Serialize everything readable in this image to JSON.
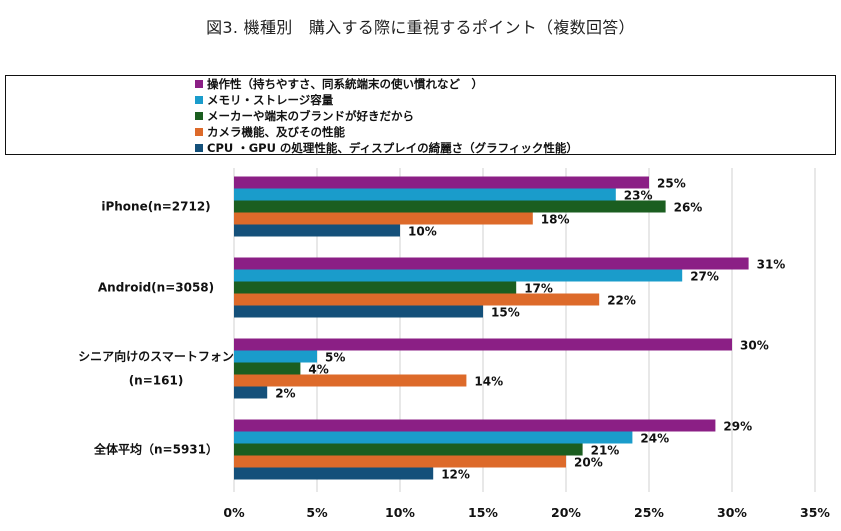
{
  "chart_data": {
    "type": "bar",
    "orientation": "horizontal",
    "title": "図3. 機種別　購入する際に重視するポイント（複数回答）",
    "xlabel": "",
    "ylabel": "",
    "xlim": [
      0,
      35
    ],
    "x_ticks": [
      0,
      5,
      10,
      15,
      20,
      25,
      30,
      35
    ],
    "x_tick_labels": [
      "0%",
      "5%",
      "10%",
      "15%",
      "20%",
      "25%",
      "30%",
      "35%"
    ],
    "grid": "vertical",
    "legend_position": "top",
    "categories": [
      {
        "label_lines": [
          "iPhone(n=2712)"
        ]
      },
      {
        "label_lines": [
          "Android(n=3058)"
        ]
      },
      {
        "label_lines": [
          "シニア向けのスマートフォン",
          "(n=161)"
        ]
      },
      {
        "label_lines": [
          "全体平均（n=5931）"
        ]
      }
    ],
    "series": [
      {
        "name": "操作性（持ちやすさ、同系統端末の使い慣れなど　）",
        "color": "#8B1F85",
        "values": [
          25,
          31,
          30,
          29
        ],
        "labels": [
          "25%",
          "31%",
          "30%",
          "29%"
        ]
      },
      {
        "name": "メモリ・ストレージ容量",
        "color": "#1A9CCB",
        "values": [
          23,
          27,
          5,
          24
        ],
        "labels": [
          "23%",
          "27%",
          "5%",
          "24%"
        ]
      },
      {
        "name": "メーカーや端末のブランドが好きだから",
        "color": "#1B5E20",
        "values": [
          26,
          17,
          4,
          21
        ],
        "labels": [
          "26%",
          "17%",
          "4%",
          "21%"
        ]
      },
      {
        "name": "カメラ機能、及びその性能",
        "color": "#DD6A2A",
        "values": [
          18,
          22,
          14,
          20
        ],
        "labels": [
          "18%",
          "22%",
          "14%",
          "20%"
        ]
      },
      {
        "name": "CPU ・GPU の処理性能、ディスプレイの綺麗さ（グラフィック性能）",
        "color": "#14507A",
        "values": [
          10,
          15,
          2,
          12
        ],
        "labels": [
          "10%",
          "15%",
          "2%",
          "12%"
        ]
      }
    ]
  }
}
